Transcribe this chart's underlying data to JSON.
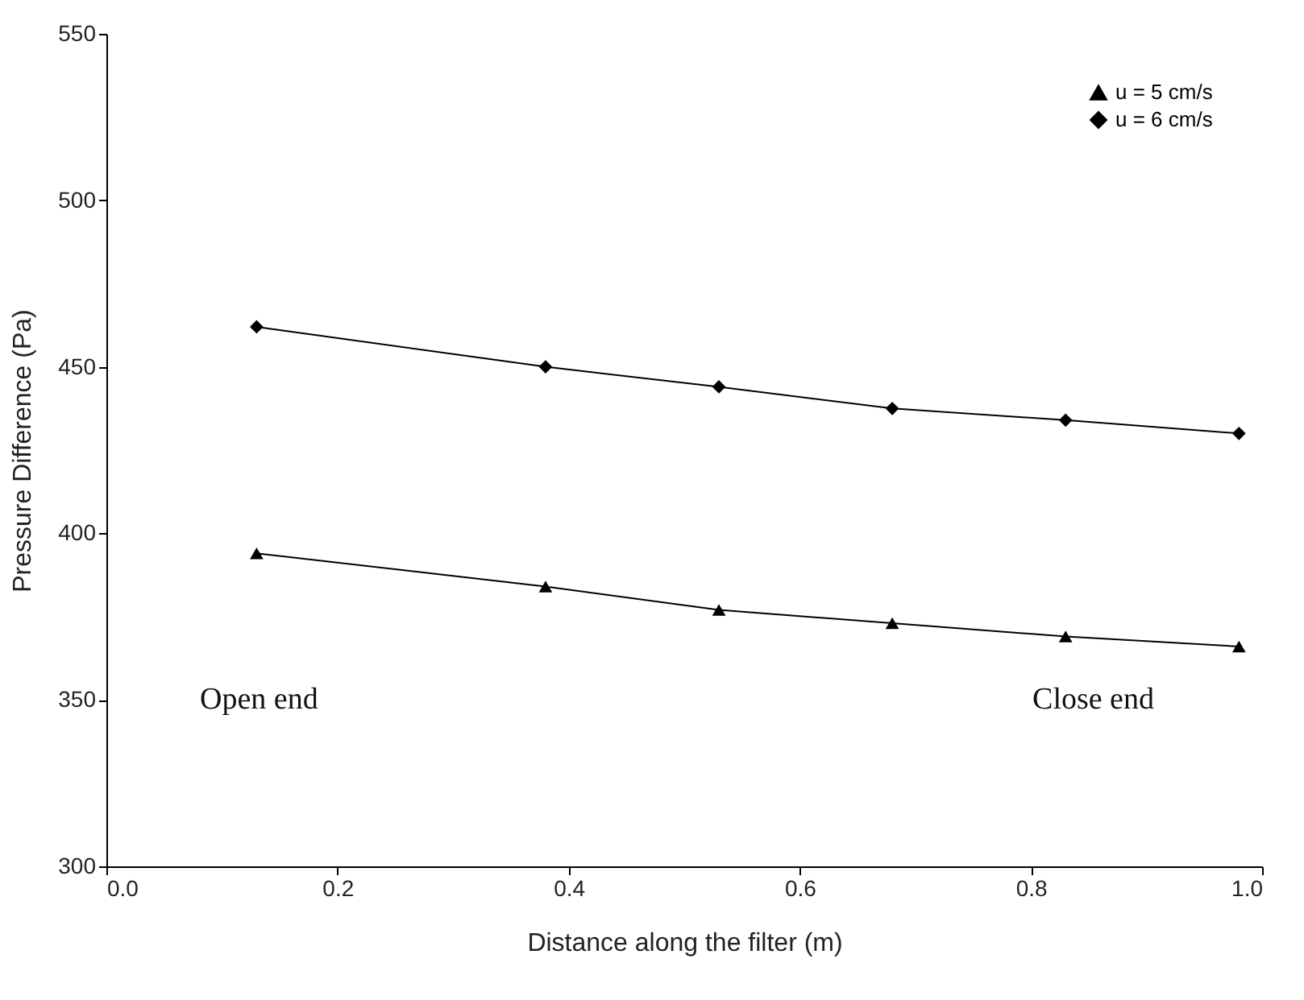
{
  "chart_data": {
    "type": "line",
    "xlabel": "Distance along the filter (m)",
    "ylabel": "Pressure Difference (Pa)",
    "x": [
      0.13,
      0.38,
      0.53,
      0.68,
      0.83,
      0.98
    ],
    "series": [
      {
        "name": "u = 5 cm/s",
        "color": "#000000",
        "marker": "triangle",
        "values": [
          394,
          384,
          377,
          373,
          369,
          366
        ]
      },
      {
        "name": "u = 6 cm/s",
        "color": "#000000",
        "marker": "diamond",
        "values": [
          462,
          450,
          444,
          437.5,
          434,
          430
        ]
      }
    ],
    "xlim": [
      0,
      1
    ],
    "xticks": [
      {
        "value": 0,
        "label": "0.0"
      },
      0.2,
      0.4,
      0.6,
      0.8,
      {
        "value": 1,
        "label": "1.0"
      }
    ],
    "ylim": [
      300,
      550
    ],
    "yticks": [
      300,
      350,
      400,
      450,
      500,
      550
    ],
    "annotations": [
      "Open end",
      "Close end"
    ],
    "grid": false,
    "legend": "top right",
    "line_style": "solid"
  }
}
